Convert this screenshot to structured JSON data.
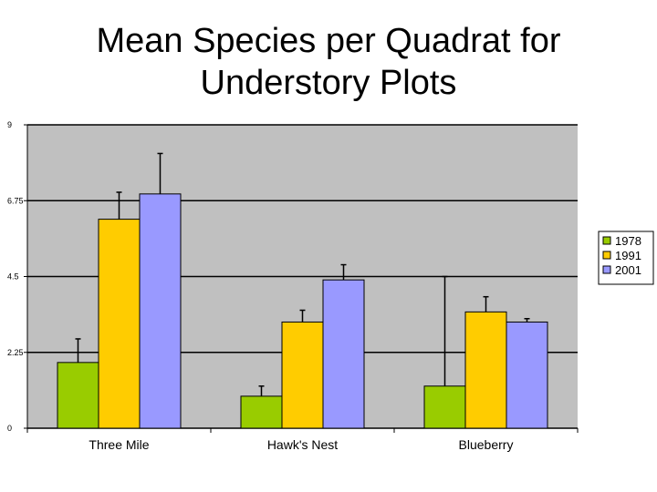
{
  "chart_data": {
    "type": "bar",
    "title": "Mean Species per Quadrat for\nUnderstory Plots",
    "categories": [
      "Three Mile",
      "Hawk's Nest",
      "Blueberry"
    ],
    "series": [
      {
        "name": "1978",
        "color": "#99cc00",
        "values": [
          1.95,
          0.95,
          1.25
        ],
        "error": [
          0.7,
          0.3,
          3.25
        ]
      },
      {
        "name": "1991",
        "color": "#ffcc00",
        "values": [
          6.2,
          3.15,
          3.45
        ],
        "error": [
          0.8,
          0.35,
          0.45
        ]
      },
      {
        "name": "2001",
        "color": "#9999ff",
        "values": [
          6.95,
          4.4,
          3.15
        ],
        "error": [
          1.2,
          0.45,
          0.1
        ]
      }
    ],
    "yticks": [
      "0",
      "2.25",
      "4.5",
      "6.75",
      "9"
    ],
    "ylim": [
      0,
      9
    ],
    "xlabel": "",
    "ylabel": "",
    "grid": true,
    "legend": "right",
    "plot_background": "#c0c0c0"
  }
}
